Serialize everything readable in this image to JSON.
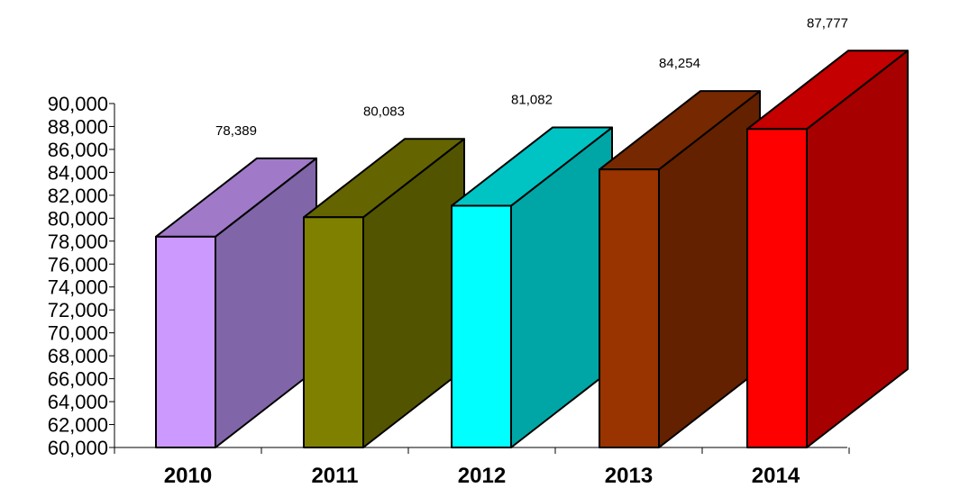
{
  "chart_data": {
    "type": "bar",
    "style": "3d-column",
    "categories": [
      "2010",
      "2011",
      "2012",
      "2013",
      "2014"
    ],
    "values": [
      78389,
      80083,
      81082,
      84254,
      87777
    ],
    "value_labels": [
      "78,389",
      "80,083",
      "81,082",
      "84,254",
      "87,777"
    ],
    "ylim": [
      60000,
      90000
    ],
    "ytick_step": 2000,
    "yticks": [
      "60,000",
      "62,000",
      "64,000",
      "66,000",
      "68,000",
      "70,000",
      "72,000",
      "74,000",
      "76,000",
      "78,000",
      "80,000",
      "82,000",
      "84,000",
      "86,000",
      "88,000",
      "90,000"
    ],
    "grid": false,
    "legend": "none",
    "title": "",
    "xlabel": "",
    "ylabel": "",
    "colors": [
      {
        "front": "#cc99ff",
        "side": "#8066a8",
        "top": "#a07ac8"
      },
      {
        "front": "#808000",
        "side": "#535400",
        "top": "#646500"
      },
      {
        "front": "#00ffff",
        "side": "#00a6a6",
        "top": "#00c4c4"
      },
      {
        "front": "#993300",
        "side": "#632100",
        "top": "#762800"
      },
      {
        "front": "#ff0000",
        "side": "#a60000",
        "top": "#c40000"
      }
    ]
  }
}
